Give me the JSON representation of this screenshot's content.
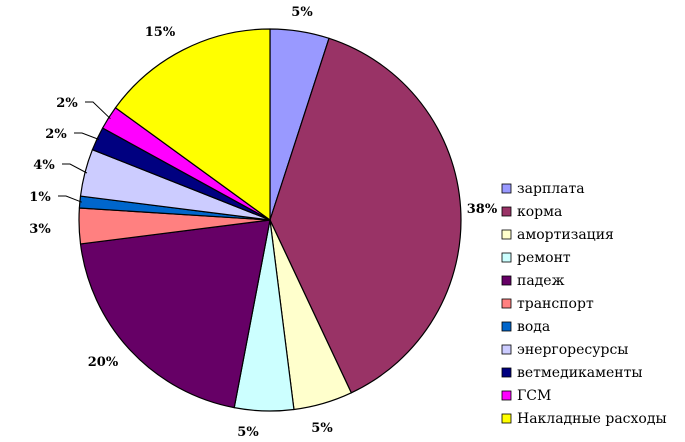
{
  "chart_data": {
    "type": "pie",
    "title": "",
    "categories": [
      "зарплата",
      "корма",
      "амортизация",
      "ремонт",
      "падеж",
      "транспорт",
      "вода",
      "энергоресурсы",
      "ветмедикаменты",
      "ГСМ",
      "Накладные расходы"
    ],
    "values": [
      5,
      38,
      5,
      5,
      20,
      3,
      1,
      4,
      2,
      2,
      15
    ],
    "data_labels": [
      "5%",
      "38%",
      "5%",
      "5%",
      "20%",
      "3%",
      "1%",
      "4%",
      "2%",
      "2%",
      "15%"
    ],
    "colors": [
      "#9999ff",
      "#993366",
      "#ffffcc",
      "#ccffff",
      "#660066",
      "#ff8080",
      "#0066cc",
      "#ccccff",
      "#000080",
      "#ff00ff",
      "#ffff00"
    ],
    "start_angle_deg": 0,
    "direction": "clockwise",
    "legend_position": "right",
    "edge_color": "#000000"
  }
}
